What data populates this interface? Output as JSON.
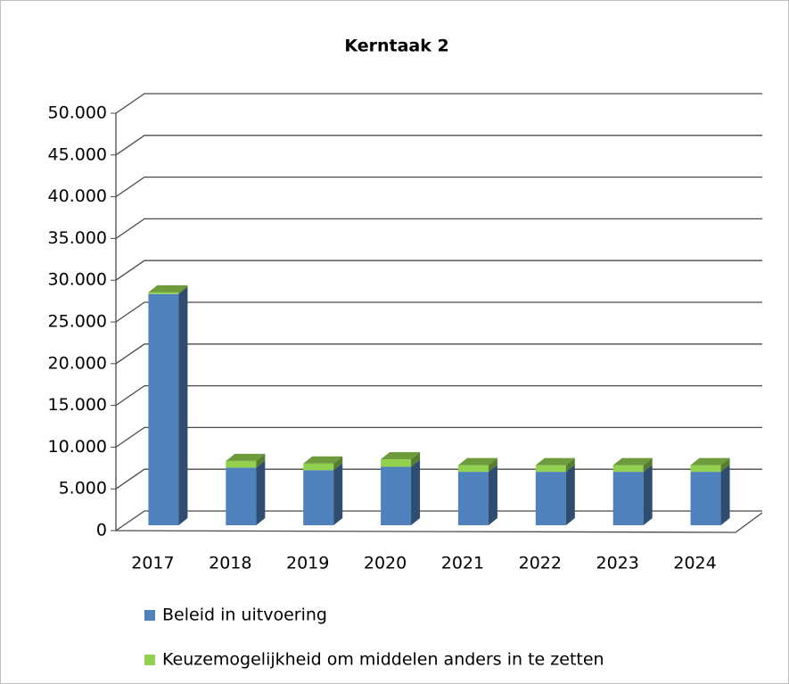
{
  "chart_data": {
    "type": "bar3d_stacked",
    "title": "Kerntaak 2",
    "categories": [
      "2017",
      "2018",
      "2019",
      "2020",
      "2021",
      "2022",
      "2023",
      "2024"
    ],
    "series": [
      {
        "name": "Beleid in uitvoering",
        "color": "#4f81bd",
        "values": [
          27700,
          6900,
          6600,
          7000,
          6400,
          6400,
          6400,
          6400
        ]
      },
      {
        "name": "Keuzemogelijkheid om middelen anders in te zetten",
        "color": "#92d050",
        "values": [
          200,
          800,
          800,
          900,
          800,
          800,
          800,
          800
        ]
      }
    ],
    "ylim": [
      0,
      50000
    ],
    "yticks": [
      0,
      {
        "value": 5000,
        "label": "5.000"
      },
      {
        "value": 10000,
        "label": "10.000"
      },
      {
        "value": 15000,
        "label": "15.000"
      },
      {
        "value": 20000,
        "label": "20.000"
      },
      {
        "value": 25000,
        "label": "25.000"
      },
      {
        "value": 30000,
        "label": "30.000"
      },
      {
        "value": 35000,
        "label": "35.000"
      },
      {
        "value": 40000,
        "label": "40.000"
      },
      {
        "value": 45000,
        "label": "45.000"
      },
      {
        "value": 50000,
        "label": "50.000"
      }
    ],
    "grid": true,
    "legend": "bottom"
  }
}
